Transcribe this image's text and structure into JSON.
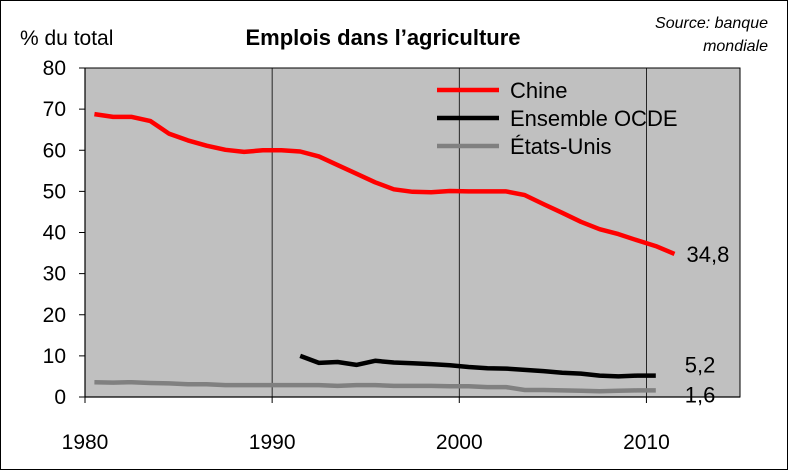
{
  "chart_data": {
    "type": "line",
    "title": "Emplois dans l’agriculture",
    "ylabel": "% du total",
    "source_lines": [
      "Source: banque",
      "mondiale"
    ],
    "xlim": [
      1980,
      2015
    ],
    "ylim": [
      0,
      80
    ],
    "x_ticks": [
      "1980",
      "1990",
      "2000",
      "2010"
    ],
    "y_ticks": [
      "0",
      "10",
      "20",
      "30",
      "40",
      "50",
      "60",
      "70",
      "80"
    ],
    "grid": "vertical",
    "legend_position": "top-right",
    "series": [
      {
        "name": "Chine",
        "color": "#ff0000",
        "end_label": "34,8",
        "x": [
          1980.5,
          1981.5,
          1982.5,
          1983.5,
          1984.5,
          1985.5,
          1986.5,
          1987.5,
          1988.5,
          1989.5,
          1990.5,
          1991.5,
          1992.5,
          1993.5,
          1994.5,
          1995.5,
          1996.5,
          1997.5,
          1998.5,
          1999.5,
          2000.5,
          2001.5,
          2002.5,
          2003.5,
          2004.5,
          2005.5,
          2006.5,
          2007.5,
          2008.5,
          2009.5,
          2010.5,
          2011.5
        ],
        "y": [
          68.8,
          68.1,
          68.1,
          67.1,
          64.0,
          62.4,
          61.1,
          60.1,
          59.6,
          60.0,
          60.0,
          59.7,
          58.5,
          56.4,
          54.3,
          52.2,
          50.5,
          49.9,
          49.8,
          50.1,
          50.0,
          50.0,
          50.0,
          49.1,
          46.9,
          44.8,
          42.6,
          40.8,
          39.6,
          38.1,
          36.7,
          34.8
        ]
      },
      {
        "name": "Ensemble OCDE",
        "color": "#000000",
        "end_label": "5,2",
        "x": [
          1991.5,
          1992.5,
          1993.5,
          1994.5,
          1995.5,
          1996.5,
          1997.5,
          1998.5,
          1999.5,
          2000.5,
          2001.5,
          2002.5,
          2003.5,
          2004.5,
          2005.5,
          2006.5,
          2007.5,
          2008.5,
          2009.5,
          2010.5
        ],
        "y": [
          10.0,
          8.3,
          8.5,
          7.8,
          8.8,
          8.4,
          8.2,
          8.0,
          7.7,
          7.3,
          7.0,
          6.9,
          6.6,
          6.3,
          5.9,
          5.7,
          5.2,
          5.0,
          5.2,
          5.2
        ]
      },
      {
        "name": "États-Unis",
        "color": "#808080",
        "end_label": "1,6",
        "x": [
          1980.5,
          1981.5,
          1982.5,
          1983.5,
          1984.5,
          1985.5,
          1986.5,
          1987.5,
          1988.5,
          1989.5,
          1990.5,
          1991.5,
          1992.5,
          1993.5,
          1994.5,
          1995.5,
          1996.5,
          1997.5,
          1998.5,
          1999.5,
          2000.5,
          2001.5,
          2002.5,
          2003.5,
          2004.5,
          2005.5,
          2006.5,
          2007.5,
          2008.5,
          2009.5,
          2010.5
        ],
        "y": [
          3.6,
          3.5,
          3.6,
          3.4,
          3.3,
          3.1,
          3.1,
          2.9,
          2.9,
          2.9,
          2.9,
          2.9,
          2.9,
          2.7,
          2.9,
          2.9,
          2.7,
          2.7,
          2.7,
          2.6,
          2.6,
          2.4,
          2.4,
          1.7,
          1.7,
          1.6,
          1.5,
          1.4,
          1.5,
          1.6,
          1.6
        ]
      }
    ]
  }
}
